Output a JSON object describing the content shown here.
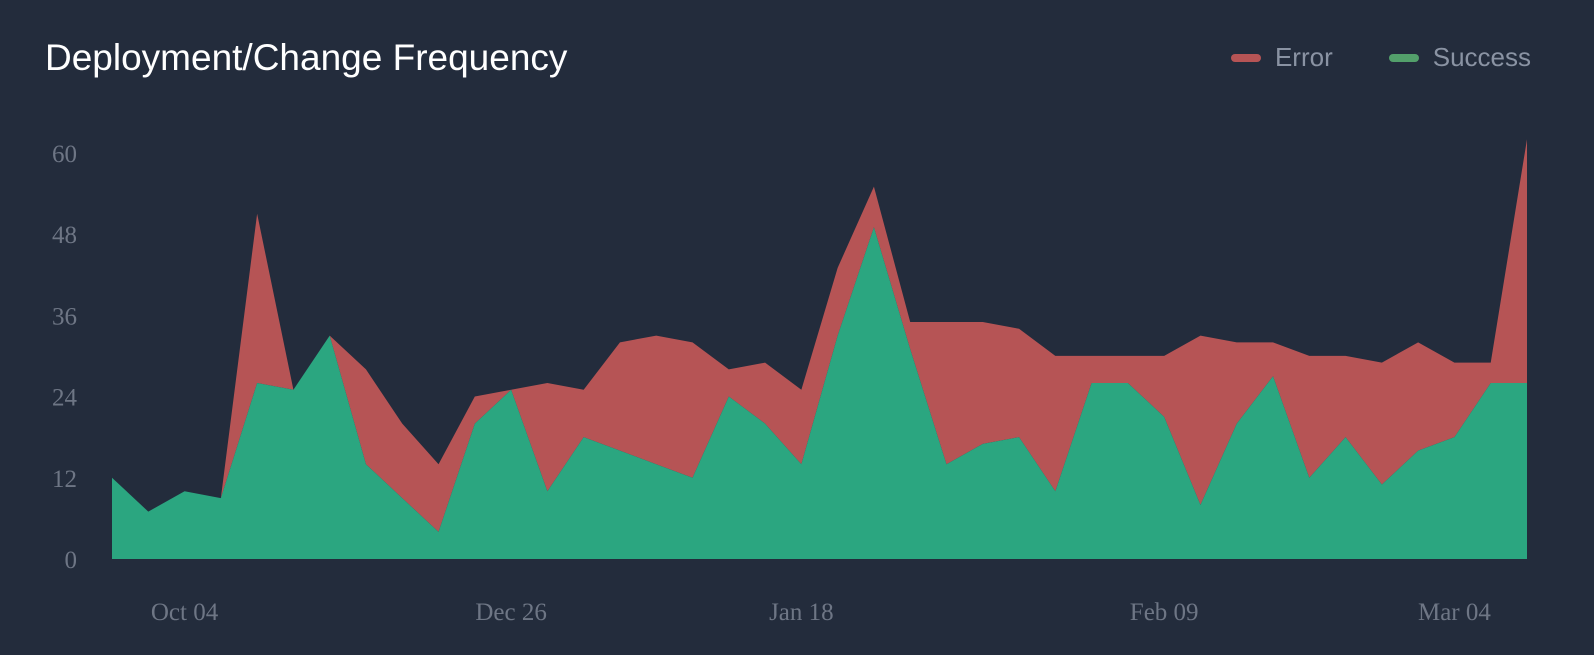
{
  "title": "Deployment/Change Frequency",
  "legend": [
    {
      "label": "Error",
      "color": "#b65455"
    },
    {
      "label": "Success",
      "color": "#53a06b"
    }
  ],
  "colors": {
    "background": "#232c3c",
    "error_area": "#b65455",
    "success_area": "#2ba680",
    "tick_text": "#6e7685"
  },
  "chart_data": {
    "type": "area",
    "title": "Deployment/Change Frequency",
    "xlabel": "",
    "ylabel": "",
    "ylim": [
      0,
      61
    ],
    "yticks": [
      0,
      12,
      24,
      36,
      48,
      60
    ],
    "x_tick_labels": [
      {
        "label": "Oct 04",
        "index": 2
      },
      {
        "label": "Dec 26",
        "index": 11
      },
      {
        "label": "Jan 18",
        "index": 19
      },
      {
        "label": "Feb 09",
        "index": 29
      },
      {
        "label": "Mar 04",
        "index": 37
      }
    ],
    "point_count": 40,
    "stacked": true,
    "grid": false,
    "legend_position": "top-right",
    "series": [
      {
        "name": "Success",
        "color": "#2ba680",
        "values": [
          12,
          7,
          10,
          9,
          26,
          25,
          33,
          14,
          9,
          4,
          20,
          25,
          10,
          18,
          16,
          14,
          12,
          24,
          20,
          14,
          33,
          49,
          31,
          14,
          17,
          18,
          10,
          26,
          26,
          21,
          8,
          20,
          27,
          12,
          18,
          11,
          16,
          18,
          26,
          26
        ]
      },
      {
        "name": "Error",
        "color": "#b65455",
        "values": [
          0,
          0,
          0,
          0,
          25,
          0,
          0,
          14,
          11,
          10,
          4,
          0,
          16,
          7,
          16,
          19,
          20,
          4,
          9,
          11,
          10,
          6,
          4,
          21,
          18,
          16,
          20,
          4,
          4,
          9,
          25,
          12,
          5,
          18,
          12,
          18,
          16,
          11,
          3,
          36
        ]
      }
    ]
  }
}
